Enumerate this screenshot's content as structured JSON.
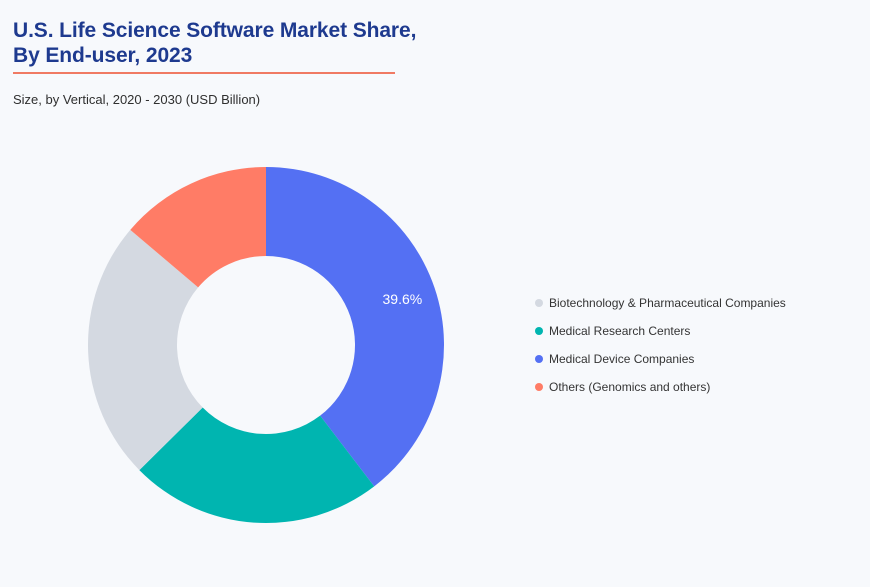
{
  "header": {
    "title_line1": "U.S. Life Science Software Market Share,",
    "title_line2": "By End-user, 2023",
    "subtitle": "Size, by Vertical, 2020 - 2030 (USD Billion)"
  },
  "chart_data": {
    "type": "pie",
    "variant": "donut",
    "title": "U.S. Life Science Software Market Share, By End-user, 2023",
    "subtitle": "Size, by Vertical, 2020 - 2030 (USD Billion)",
    "legend_position": "right",
    "start_at": "top",
    "direction": "clockwise",
    "slices": [
      {
        "label": "Medical Device Companies",
        "value": 39.6,
        "color": "#5470f3",
        "data_label": "39.6%"
      },
      {
        "label": "Medical Research Centers",
        "value": 23.0,
        "color": "#00b5b0",
        "data_label": ""
      },
      {
        "label": "Biotechnology & Pharmaceutical Companies",
        "value": 23.6,
        "color": "#d4d9e1",
        "data_label": ""
      },
      {
        "label": "Others (Genomics and others)",
        "value": 13.8,
        "color": "#ff7c66",
        "data_label": ""
      }
    ],
    "legend": [
      {
        "label": "Biotechnology & Pharmaceutical Companies",
        "color": "#d4d9e1"
      },
      {
        "label": "Medical Research Centers",
        "color": "#00b5b0"
      },
      {
        "label": "Medical Device Companies",
        "color": "#5470f3"
      },
      {
        "label": "Others (Genomics and others)",
        "color": "#ff7c66"
      }
    ]
  }
}
